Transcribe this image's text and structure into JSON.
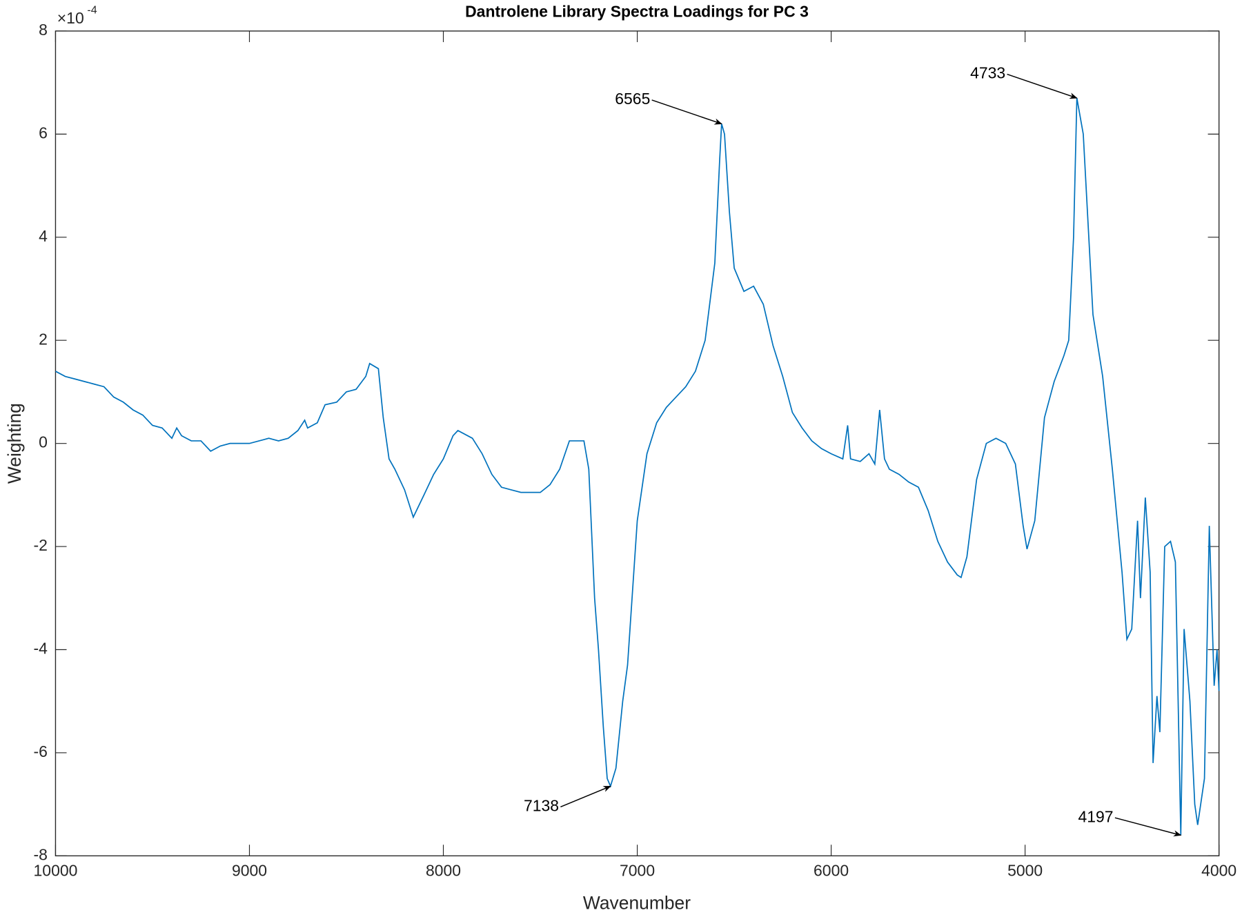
{
  "chart_data": {
    "type": "line",
    "title": "Dantrolene Library Spectra Loadings for PC 3",
    "x_label": "Wavenumber",
    "y_label": "Weighting",
    "y_scale_base": "×10",
    "y_scale_exponent": "-4",
    "xlim": [
      10000,
      4000
    ],
    "xticks": [
      10000,
      9000,
      8000,
      7000,
      6000,
      5000,
      4000
    ],
    "ylim": [
      -8,
      8
    ],
    "yticks": [
      -8,
      -6,
      -4,
      -2,
      0,
      2,
      4,
      6,
      8
    ],
    "grid": false,
    "color": "#0072bd",
    "x": [
      10000,
      9950,
      9900,
      9850,
      9800,
      9750,
      9700,
      9650,
      9600,
      9550,
      9500,
      9450,
      9400,
      9375,
      9350,
      9300,
      9250,
      9200,
      9150,
      9100,
      9050,
      9000,
      8950,
      8900,
      8850,
      8800,
      8750,
      8715,
      8700,
      8650,
      8610,
      8550,
      8500,
      8450,
      8400,
      8380,
      8335,
      8310,
      8280,
      8250,
      8200,
      8155,
      8100,
      8050,
      8000,
      7950,
      7925,
      7850,
      7800,
      7750,
      7700,
      7650,
      7600,
      7550,
      7500,
      7450,
      7400,
      7350,
      7300,
      7275,
      7250,
      7220,
      7200,
      7175,
      7155,
      7138,
      7110,
      7075,
      7050,
      7000,
      6950,
      6900,
      6850,
      6800,
      6750,
      6700,
      6650,
      6600,
      6575,
      6565,
      6550,
      6525,
      6500,
      6450,
      6400,
      6350,
      6300,
      6250,
      6200,
      6150,
      6100,
      6050,
      6000,
      5940,
      5915,
      5900,
      5850,
      5805,
      5775,
      5750,
      5725,
      5700,
      5650,
      5600,
      5550,
      5500,
      5450,
      5400,
      5350,
      5330,
      5300,
      5250,
      5200,
      5150,
      5100,
      5050,
      5010,
      4990,
      4950,
      4900,
      4850,
      4800,
      4775,
      4750,
      4733,
      4700,
      4650,
      4600,
      4550,
      4500,
      4475,
      4450,
      4420,
      4405,
      4380,
      4355,
      4340,
      4320,
      4305,
      4280,
      4250,
      4225,
      4197,
      4180,
      4150,
      4125,
      4110,
      4075,
      4050,
      4025,
      4010,
      4000
    ],
    "values": [
      1.4,
      1.3,
      1.25,
      1.2,
      1.15,
      1.1,
      0.9,
      0.8,
      0.65,
      0.55,
      0.35,
      0.3,
      0.1,
      0.3,
      0.15,
      0.05,
      0.05,
      -0.15,
      -0.05,
      0,
      0,
      0,
      0.05,
      0.1,
      0.05,
      0.1,
      0.25,
      0.45,
      0.3,
      0.4,
      0.75,
      0.8,
      1,
      1.05,
      1.3,
      1.55,
      1.45,
      0.5,
      -0.3,
      -0.5,
      -0.9,
      -1.43,
      -1,
      -0.6,
      -0.3,
      0.15,
      0.25,
      0.1,
      -0.2,
      -0.6,
      -0.85,
      -0.9,
      -0.95,
      -0.95,
      -0.95,
      -0.8,
      -0.5,
      0.05,
      0.05,
      0.05,
      -0.5,
      -3,
      -4,
      -5.5,
      -6.5,
      -6.65,
      -6.3,
      -5,
      -4.3,
      -1.5,
      -0.2,
      0.4,
      0.7,
      0.9,
      1.1,
      1.4,
      2,
      3.5,
      5.5,
      6.2,
      6,
      4.5,
      3.4,
      2.95,
      3.05,
      2.7,
      1.9,
      1.3,
      0.6,
      0.3,
      0.05,
      -0.1,
      -0.2,
      -0.3,
      0.35,
      -0.3,
      -0.35,
      -0.2,
      -0.4,
      0.65,
      -0.3,
      -0.5,
      -0.6,
      -0.75,
      -0.85,
      -1.3,
      -1.9,
      -2.3,
      -2.55,
      -2.6,
      -2.2,
      -0.7,
      0,
      0.1,
      0,
      -0.4,
      -1.6,
      -2.05,
      -1.5,
      0.5,
      1.2,
      1.7,
      2,
      4,
      6.7,
      6,
      2.5,
      1.3,
      -0.5,
      -2.5,
      -3.8,
      -3.6,
      -1.5,
      -3,
      -1.05,
      -2.5,
      -6.2,
      -4.9,
      -5.6,
      -2,
      -1.9,
      -2.3,
      -7.6,
      -3.6,
      -5,
      -7,
      -7.4,
      -6.5,
      -1.6,
      -4.7,
      -4,
      -4.8
    ],
    "annotations": [
      {
        "x": 6565,
        "y": 6.2
      },
      {
        "x": 4733,
        "y": 6.7
      },
      {
        "x": 7138,
        "y": -6.65
      },
      {
        "x": 4197,
        "y": -7.6
      }
    ]
  }
}
